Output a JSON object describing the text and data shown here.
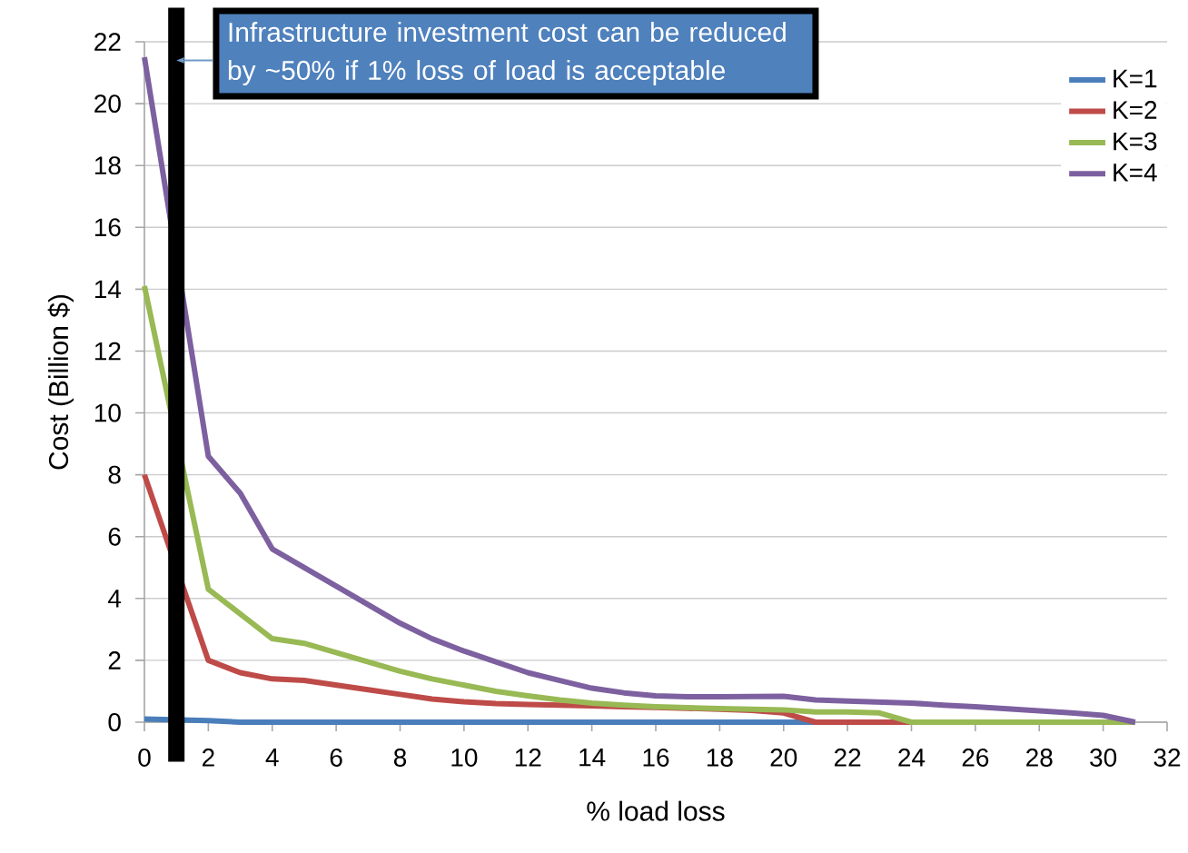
{
  "chart_data": {
    "type": "line",
    "xlabel": "% load loss",
    "ylabel": "Cost (Billion $)",
    "x": [
      0,
      1,
      2,
      3,
      4,
      5,
      6,
      7,
      8,
      9,
      10,
      11,
      12,
      13,
      14,
      15,
      16,
      17,
      18,
      19,
      20,
      21,
      22,
      23,
      24,
      25,
      26,
      27,
      28,
      29,
      30,
      31
    ],
    "series": [
      {
        "name": "K=1",
        "color": "#4a7ebb",
        "values": [
          0.1,
          null,
          0.05,
          0,
          0,
          0,
          0,
          0,
          0,
          0,
          0,
          0,
          0,
          0,
          0,
          0,
          0,
          0,
          0,
          0,
          0,
          0,
          0,
          0,
          0,
          0,
          0,
          0,
          0,
          0,
          0,
          0
        ]
      },
      {
        "name": "K=2",
        "color": "#be4b48",
        "values": [
          8,
          null,
          2.0,
          1.6,
          1.4,
          1.35,
          1.2,
          1.05,
          0.9,
          0.75,
          0.66,
          0.6,
          0.57,
          0.55,
          0.53,
          0.5,
          0.48,
          0.45,
          0.42,
          0.38,
          0.3,
          0,
          0,
          0,
          0,
          0,
          null,
          null,
          null,
          null,
          null,
          null
        ]
      },
      {
        "name": "K=3",
        "color": "#98b954",
        "values": [
          14.1,
          null,
          4.3,
          3.5,
          2.7,
          2.55,
          2.25,
          1.95,
          1.65,
          1.4,
          1.2,
          1.0,
          0.85,
          0.72,
          0.62,
          0.55,
          0.5,
          0.47,
          0.44,
          0.42,
          0.4,
          0.33,
          0.33,
          0.3,
          0,
          0,
          0,
          0,
          0,
          0,
          0,
          0
        ]
      },
      {
        "name": "K=4",
        "color": "#7d60a0",
        "values": [
          21.5,
          null,
          8.6,
          7.4,
          5.6,
          5.0,
          4.4,
          3.8,
          3.2,
          2.7,
          2.3,
          1.95,
          1.6,
          1.35,
          1.1,
          0.95,
          0.85,
          0.82,
          0.82,
          0.83,
          0.84,
          0.72,
          0.68,
          0.65,
          0.62,
          0.55,
          0.5,
          0.43,
          0.37,
          0.3,
          0.22,
          0
        ]
      }
    ],
    "xlim": [
      0,
      32
    ],
    "xticks": [
      0,
      2,
      4,
      6,
      8,
      10,
      12,
      14,
      16,
      18,
      20,
      22,
      24,
      26,
      28,
      30,
      32
    ],
    "ylim": [
      0,
      22
    ],
    "yticks": [
      0,
      2,
      4,
      6,
      8,
      10,
      12,
      14,
      16,
      18,
      20,
      22
    ],
    "grid": "y",
    "legend": "top right",
    "marker": "none",
    "line_style": "solid",
    "ref_lines": [
      {
        "axis": "x",
        "value": 1,
        "color": "#000000"
      }
    ],
    "annotations": [
      {
        "text": "Infrastructure investment cost can be reduced by ~50% if 1% loss of load is acceptable",
        "x": 1,
        "y": 21.4
      }
    ]
  }
}
